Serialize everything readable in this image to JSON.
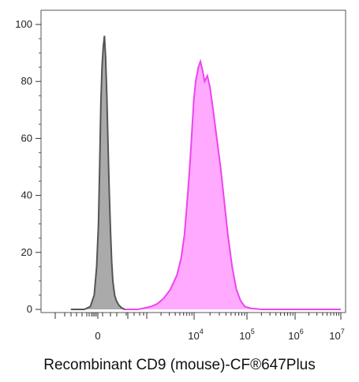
{
  "chart_data": {
    "type": "area",
    "title": "",
    "xlabel": "Recombinant CD9 (mouse)-CF®647Plus",
    "ylabel": "",
    "ylim": [
      0,
      100
    ],
    "y_ticks": [
      "0",
      "20",
      "40",
      "60",
      "80",
      "100"
    ],
    "x_ticks": [
      {
        "base": "0",
        "exp": ""
      },
      {
        "base": "10",
        "exp": "4"
      },
      {
        "base": "10",
        "exp": "5"
      },
      {
        "base": "10",
        "exp": "6"
      },
      {
        "base": "10",
        "exp": "7"
      }
    ],
    "grid": false,
    "legend": "none",
    "series": [
      {
        "color": "#555555",
        "fill": "#aaaaaa",
        "points": [
          [
            -0.9,
            0
          ],
          [
            -0.45,
            0
          ],
          [
            -0.25,
            1
          ],
          [
            -0.12,
            5
          ],
          [
            -0.04,
            15
          ],
          [
            0.02,
            30
          ],
          [
            0.06,
            50
          ],
          [
            0.1,
            72
          ],
          [
            0.14,
            85
          ],
          [
            0.18,
            92
          ],
          [
            0.22,
            96
          ],
          [
            0.26,
            88
          ],
          [
            0.3,
            75
          ],
          [
            0.34,
            58
          ],
          [
            0.38,
            42
          ],
          [
            0.42,
            28
          ],
          [
            0.46,
            17
          ],
          [
            0.5,
            10
          ],
          [
            0.56,
            5
          ],
          [
            0.62,
            3
          ],
          [
            0.7,
            1.5
          ],
          [
            0.8,
            0.5
          ],
          [
            0.9,
            0
          ],
          [
            1.2,
            0
          ]
        ]
      },
      {
        "color": "#ee44ee",
        "fill": "#ffaaff",
        "points": [
          [
            0.9,
            0
          ],
          [
            1.4,
            0
          ],
          [
            1.7,
            0.5
          ],
          [
            2.0,
            1
          ],
          [
            2.3,
            2
          ],
          [
            2.6,
            4
          ],
          [
            2.9,
            7
          ],
          [
            3.2,
            12
          ],
          [
            3.4,
            18
          ],
          [
            3.55,
            26
          ],
          [
            3.65,
            35
          ],
          [
            3.75,
            45
          ],
          [
            3.85,
            56
          ],
          [
            3.92,
            65
          ],
          [
            3.98,
            73
          ],
          [
            4.03,
            80
          ],
          [
            4.08,
            85
          ],
          [
            4.12,
            87
          ],
          [
            4.16,
            84
          ],
          [
            4.2,
            80
          ],
          [
            4.25,
            82
          ],
          [
            4.3,
            78
          ],
          [
            4.36,
            70
          ],
          [
            4.43,
            60
          ],
          [
            4.5,
            50
          ],
          [
            4.57,
            38
          ],
          [
            4.64,
            26
          ],
          [
            4.72,
            15
          ],
          [
            4.8,
            7
          ],
          [
            4.88,
            3
          ],
          [
            4.96,
            1
          ],
          [
            5.1,
            0.3
          ],
          [
            5.3,
            0
          ],
          [
            7.0,
            0
          ]
        ]
      }
    ]
  }
}
